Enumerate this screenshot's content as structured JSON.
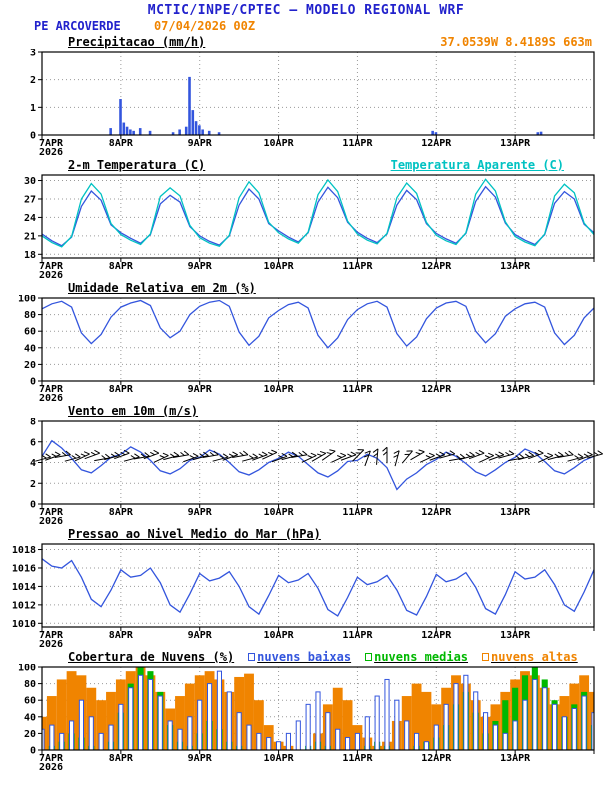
{
  "header": {
    "title": "MCTIC/INPE/CPTEC — MODELO REGIONAL WRF",
    "station": "PE ARCOVERDE",
    "run": "07/04/2026 00Z",
    "coords": "37.0539W 8.4189S 663m"
  },
  "colors": {
    "blue": "#2222cc",
    "orange": "#f08400",
    "cyan": "#00c2c2",
    "green": "#00b800",
    "line": "#3355dd",
    "grid": "#9a9a9a",
    "black": "#000000"
  },
  "x_axis": {
    "hours_total": 168,
    "tick_step": 24,
    "tick_labels": [
      "7APR",
      "8APR",
      "9APR",
      "10APR",
      "11APR",
      "12APR",
      "13APR"
    ],
    "year_label": "2026"
  },
  "chart_data": [
    {
      "type": "bar",
      "title": "Precipitacao (mm/h)",
      "ylim": [
        0,
        3
      ],
      "yticks": [
        0,
        1,
        2,
        3
      ],
      "color_key": "line",
      "x_hours": [
        21,
        24,
        25,
        26,
        27,
        28,
        30,
        33,
        40,
        42,
        44,
        45,
        46,
        47,
        48,
        49,
        51,
        54,
        119,
        120,
        151,
        152
      ],
      "values": [
        0.25,
        1.3,
        0.45,
        0.3,
        0.2,
        0.15,
        0.25,
        0.15,
        0.1,
        0.2,
        0.3,
        2.1,
        0.9,
        0.5,
        0.35,
        0.2,
        0.15,
        0.1,
        0.15,
        0.1,
        0.1,
        0.12
      ]
    },
    {
      "type": "line",
      "title": "2-m Temperatura (C)",
      "legend": "Temperatura Aparente (C)",
      "ylim": [
        17.4,
        30.9
      ],
      "yticks": [
        18,
        21,
        24,
        27,
        30
      ],
      "step_hours": 3,
      "series": [
        {
          "name": "2-m Temperatura",
          "color_key": "line",
          "values": [
            21.3,
            20.2,
            19.4,
            20.8,
            25.8,
            28.3,
            26.8,
            22.8,
            21.5,
            20.6,
            19.8,
            21.2,
            26.2,
            27.6,
            26.5,
            22.5,
            21.0,
            20.1,
            19.5,
            21.0,
            26.0,
            28.6,
            27.0,
            23.0,
            21.8,
            20.8,
            20.0,
            21.5,
            26.5,
            28.9,
            27.2,
            23.2,
            21.6,
            20.6,
            19.9,
            21.3,
            26.0,
            28.4,
            26.9,
            23.0,
            21.4,
            20.5,
            19.8,
            21.4,
            26.6,
            29.0,
            27.3,
            23.1,
            21.2,
            20.3,
            19.6,
            21.2,
            26.3,
            28.2,
            27.0,
            22.9,
            21.5
          ]
        },
        {
          "name": "Temperatura Aparente",
          "color_key": "cyan",
          "values": [
            21.0,
            19.9,
            19.2,
            20.9,
            27.0,
            29.5,
            27.8,
            23.0,
            21.2,
            20.3,
            19.6,
            21.3,
            27.4,
            28.8,
            27.5,
            22.7,
            20.7,
            19.8,
            19.3,
            21.1,
            27.2,
            29.8,
            28.0,
            23.2,
            21.5,
            20.5,
            19.8,
            21.6,
            27.7,
            30.1,
            28.2,
            23.4,
            21.3,
            20.3,
            19.7,
            21.4,
            27.2,
            29.6,
            27.9,
            23.2,
            21.1,
            20.2,
            19.6,
            21.5,
            27.8,
            30.2,
            28.3,
            23.3,
            20.9,
            20.0,
            19.4,
            21.3,
            27.5,
            29.4,
            28.0,
            23.1,
            21.2
          ]
        }
      ]
    },
    {
      "type": "line",
      "title": "Umidade Relativa em 2m (%)",
      "ylim": [
        0,
        100
      ],
      "yticks": [
        0,
        20,
        40,
        60,
        80,
        100
      ],
      "step_hours": 3,
      "series": [
        {
          "name": "Umidade Relativa",
          "color_key": "line",
          "values": [
            87,
            93,
            96,
            89,
            58,
            45,
            56,
            77,
            89,
            94,
            97,
            91,
            64,
            52,
            60,
            80,
            90,
            95,
            97,
            90,
            59,
            43,
            54,
            76,
            85,
            92,
            95,
            88,
            55,
            40,
            52,
            74,
            86,
            93,
            96,
            89,
            57,
            42,
            53,
            75,
            88,
            94,
            96,
            90,
            60,
            46,
            57,
            78,
            87,
            93,
            95,
            89,
            58,
            44,
            55,
            76,
            88
          ]
        }
      ]
    },
    {
      "type": "wind",
      "title": "Vento em 10m (m/s)",
      "ylim": [
        0,
        8
      ],
      "yticks": [
        0,
        2,
        4,
        6,
        8
      ],
      "step_hours": 3,
      "barb_base": 4.3,
      "series": [
        {
          "name": "Vento 10m",
          "color_key": "line",
          "values": [
            4.6,
            6.1,
            5.4,
            4.4,
            3.3,
            3.0,
            3.7,
            4.5,
            4.8,
            5.5,
            5.0,
            4.2,
            3.2,
            2.9,
            3.4,
            4.2,
            4.5,
            5.2,
            4.8,
            4.0,
            3.1,
            2.8,
            3.3,
            4.0,
            4.4,
            5.0,
            4.6,
            3.8,
            3.0,
            2.6,
            3.2,
            4.1,
            4.2,
            4.8,
            4.4,
            3.5,
            1.4,
            2.4,
            3.0,
            3.8,
            4.3,
            5.0,
            4.6,
            3.9,
            3.1,
            2.7,
            3.3,
            4.0,
            4.5,
            5.3,
            4.9,
            4.1,
            3.2,
            2.9,
            3.5,
            4.2,
            4.6
          ]
        }
      ],
      "barb_angles": [
        15,
        20,
        10,
        15,
        25,
        20,
        10,
        15,
        20,
        15,
        10,
        20,
        25,
        15,
        10,
        20,
        15,
        10,
        15,
        20,
        10,
        15,
        20,
        25,
        20,
        15,
        10,
        25,
        30,
        35,
        25,
        20,
        45,
        70,
        85,
        90,
        75,
        50,
        30,
        25,
        20,
        15,
        10,
        15,
        20,
        25,
        20,
        15,
        10,
        15,
        20,
        25,
        15,
        10,
        15,
        20,
        15
      ]
    },
    {
      "type": "line",
      "title": "Pressao ao Nivel Medio do Mar (hPa)",
      "ylim": [
        1009.6,
        1018.6
      ],
      "yticks": [
        1010,
        1012,
        1014,
        1016,
        1018
      ],
      "step_hours": 3,
      "series": [
        {
          "name": "Pressao",
          "color_key": "line",
          "values": [
            1017.0,
            1016.2,
            1016.0,
            1016.8,
            1015.0,
            1012.6,
            1011.8,
            1013.6,
            1015.8,
            1015.0,
            1015.2,
            1016.0,
            1014.4,
            1012.0,
            1011.2,
            1013.2,
            1015.4,
            1014.6,
            1014.9,
            1015.6,
            1014.0,
            1011.8,
            1011.0,
            1013.0,
            1015.2,
            1014.4,
            1014.7,
            1015.4,
            1013.8,
            1011.5,
            1010.8,
            1012.8,
            1015.0,
            1014.2,
            1014.5,
            1015.2,
            1013.6,
            1011.4,
            1010.9,
            1012.9,
            1015.3,
            1014.5,
            1014.8,
            1015.5,
            1013.9,
            1011.6,
            1011.0,
            1013.1,
            1015.6,
            1014.8,
            1015.0,
            1015.8,
            1014.2,
            1012.0,
            1011.3,
            1013.4,
            1015.8
          ]
        }
      ]
    },
    {
      "type": "cloudbar",
      "title": "Cobertura de Nuvens (%)",
      "ylim": [
        0,
        100
      ],
      "yticks": [
        0,
        20,
        40,
        60,
        80,
        100
      ],
      "step_hours": 3,
      "legend": [
        {
          "label": "nuvens baixas",
          "color_key": "line"
        },
        {
          "label": "nuvens medias",
          "color_key": "green"
        },
        {
          "label": "nuvens altas",
          "color_key": "orange"
        }
      ],
      "series": [
        {
          "name": "nuvens altas",
          "color_key": "orange",
          "values": [
            40,
            65,
            85,
            95,
            90,
            75,
            60,
            70,
            85,
            95,
            100,
            90,
            70,
            50,
            65,
            80,
            90,
            95,
            85,
            70,
            88,
            92,
            60,
            30,
            10,
            5,
            0,
            0,
            20,
            55,
            75,
            60,
            30,
            15,
            5,
            10,
            35,
            65,
            80,
            70,
            55,
            75,
            90,
            80,
            60,
            40,
            55,
            70,
            85,
            95,
            90,
            75,
            55,
            65,
            80,
            90,
            70
          ]
        },
        {
          "name": "nuvens medias",
          "color_key": "green",
          "values": [
            0,
            5,
            10,
            20,
            15,
            5,
            0,
            10,
            45,
            80,
            100,
            95,
            70,
            30,
            10,
            5,
            20,
            35,
            25,
            10,
            5,
            0,
            0,
            0,
            0,
            0,
            0,
            5,
            10,
            5,
            0,
            0,
            0,
            5,
            10,
            5,
            0,
            0,
            5,
            10,
            15,
            30,
            55,
            70,
            45,
            20,
            35,
            60,
            75,
            90,
            100,
            85,
            60,
            40,
            55,
            70,
            30
          ]
        },
        {
          "name": "nuvens baixas",
          "color_key": "line",
          "values": [
            25,
            30,
            20,
            35,
            60,
            40,
            20,
            30,
            55,
            75,
            90,
            85,
            65,
            35,
            25,
            40,
            60,
            80,
            95,
            70,
            45,
            30,
            20,
            15,
            10,
            20,
            35,
            55,
            70,
            45,
            25,
            15,
            20,
            40,
            65,
            85,
            60,
            35,
            20,
            10,
            30,
            55,
            80,
            90,
            70,
            45,
            30,
            20,
            35,
            60,
            85,
            75,
            55,
            40,
            50,
            65,
            45
          ]
        }
      ]
    }
  ]
}
